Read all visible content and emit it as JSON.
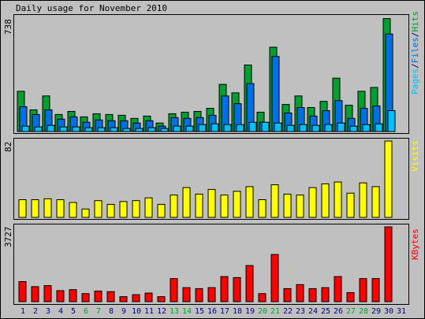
{
  "colors": {
    "background": "#c0c0c0",
    "hits": "#00a030",
    "files": "#0070e0",
    "pages": "#00c0ff",
    "visits": "#ffff00",
    "kbytes": "#ff0000",
    "weekend_label": "#00a030",
    "weekday_label": "#000080",
    "text": "#000000"
  },
  "chart_data": {
    "type": "bar",
    "title": "Daily usage for November 2010",
    "days": [
      "1",
      "2",
      "3",
      "4",
      "5",
      "6",
      "7",
      "8",
      "9",
      "10",
      "11",
      "12",
      "13",
      "14",
      "15",
      "16",
      "17",
      "18",
      "19",
      "20",
      "21",
      "22",
      "23",
      "24",
      "25",
      "26",
      "27",
      "28",
      "29",
      "30",
      "31"
    ],
    "weekend_days": [
      "6",
      "7",
      "13",
      "14",
      "20",
      "21",
      "27",
      "28"
    ],
    "panels": [
      {
        "name": "Pages/Files/Hits",
        "ymax": 738,
        "ymax_label": "738",
        "legend": [
          {
            "text": "Pages",
            "color": "#00c0ff"
          },
          {
            "text": "/",
            "color": "#000080"
          },
          {
            "text": "Files",
            "color": "#0070e0"
          },
          {
            "text": "/",
            "color": "#000080"
          },
          {
            "text": "Hits",
            "color": "#00a030"
          }
        ],
        "series": [
          {
            "name": "Hits",
            "color": "#00a030",
            "values": [
              260,
              140,
              230,
              110,
              130,
              95,
              115,
              110,
              105,
              85,
              100,
              55,
              115,
              125,
              130,
              150,
              305,
              250,
              430,
              125,
              545,
              175,
              230,
              155,
              195,
              345,
              170,
              260,
              285,
              730
            ]
          },
          {
            "name": "Files",
            "color": "#0070e0",
            "values": [
              160,
              110,
              140,
              80,
              95,
              60,
              75,
              70,
              70,
              55,
              70,
              35,
              90,
              85,
              90,
              105,
              230,
              180,
              310,
              60,
              485,
              120,
              155,
              100,
              135,
              200,
              85,
              150,
              165,
              630
            ]
          },
          {
            "name": "Pages",
            "color": "#00c0ff",
            "values": [
              35,
              30,
              40,
              30,
              30,
              25,
              25,
              25,
              20,
              20,
              25,
              20,
              35,
              35,
              45,
              50,
              45,
              45,
              60,
              60,
              55,
              40,
              45,
              40,
              45,
              55,
              35,
              45,
              50,
              135
            ]
          }
        ]
      },
      {
        "name": "Visits",
        "ymax": 82,
        "ymax_label": "82",
        "legend": [
          {
            "text": "Visits",
            "color": "#ffff00"
          }
        ],
        "series": [
          {
            "name": "Visits",
            "color": "#ffff00",
            "values": [
              19,
              19,
              20,
              19,
              16,
              9,
              18,
              14,
              17,
              18,
              21,
              14,
              24,
              32,
              25,
              30,
              24,
              28,
              33,
              19,
              35,
              25,
              24,
              32,
              36,
              38,
              26,
              37,
              33,
              82
            ]
          }
        ]
      },
      {
        "name": "KBytes",
        "ymax": 3727,
        "ymax_label": "3727",
        "legend": [
          {
            "text": "KBytes",
            "color": "#ff0000"
          }
        ],
        "series": [
          {
            "name": "KBytes",
            "color": "#ff0000",
            "values": [
              1000,
              750,
              800,
              550,
              600,
              400,
              530,
              500,
              250,
              350,
              430,
              250,
              1150,
              700,
              650,
              700,
              1250,
              1200,
              1800,
              400,
              2350,
              650,
              850,
              650,
              700,
              1250,
              450,
              1150,
              1150,
              3727
            ]
          }
        ]
      }
    ]
  }
}
